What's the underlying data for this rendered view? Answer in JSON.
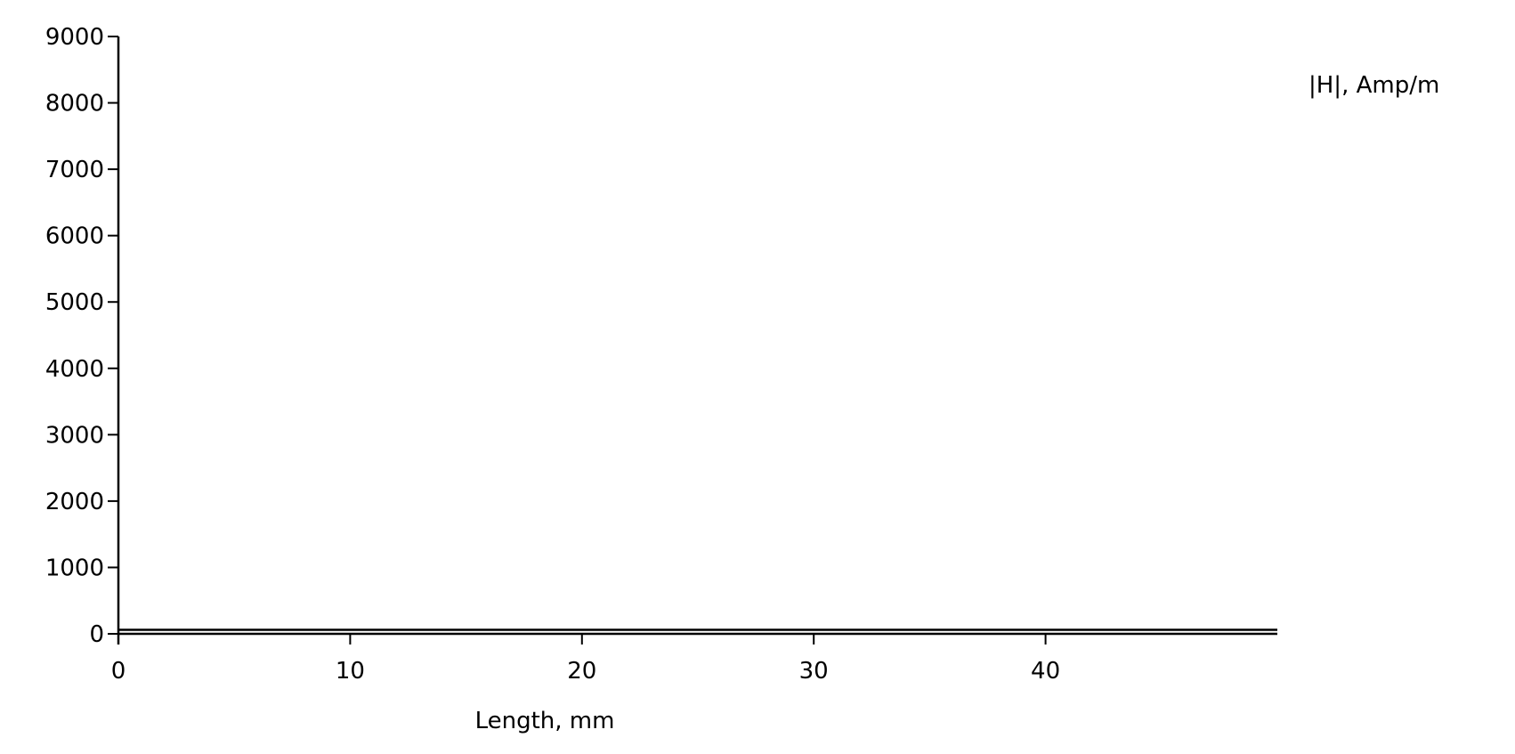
{
  "chart_data": {
    "type": "line",
    "title": "",
    "xlabel": "Length, mm",
    "ylabel": "|H|, Amp/m",
    "xlim": [
      0,
      50
    ],
    "ylim": [
      0,
      9000
    ],
    "x_ticks": [
      0,
      10,
      20,
      30,
      40
    ],
    "y_ticks": [
      0,
      1000,
      2000,
      3000,
      4000,
      5000,
      6000,
      7000,
      8000,
      9000
    ],
    "grid": false,
    "legend": "none",
    "series": [
      {
        "x": [
          0,
          5,
          10,
          15,
          20,
          25,
          30,
          35,
          40,
          45,
          50
        ],
        "y": [
          60,
          60,
          60,
          60,
          60,
          60,
          60,
          60,
          60,
          60,
          60
        ]
      }
    ],
    "line_color": "#000000"
  }
}
